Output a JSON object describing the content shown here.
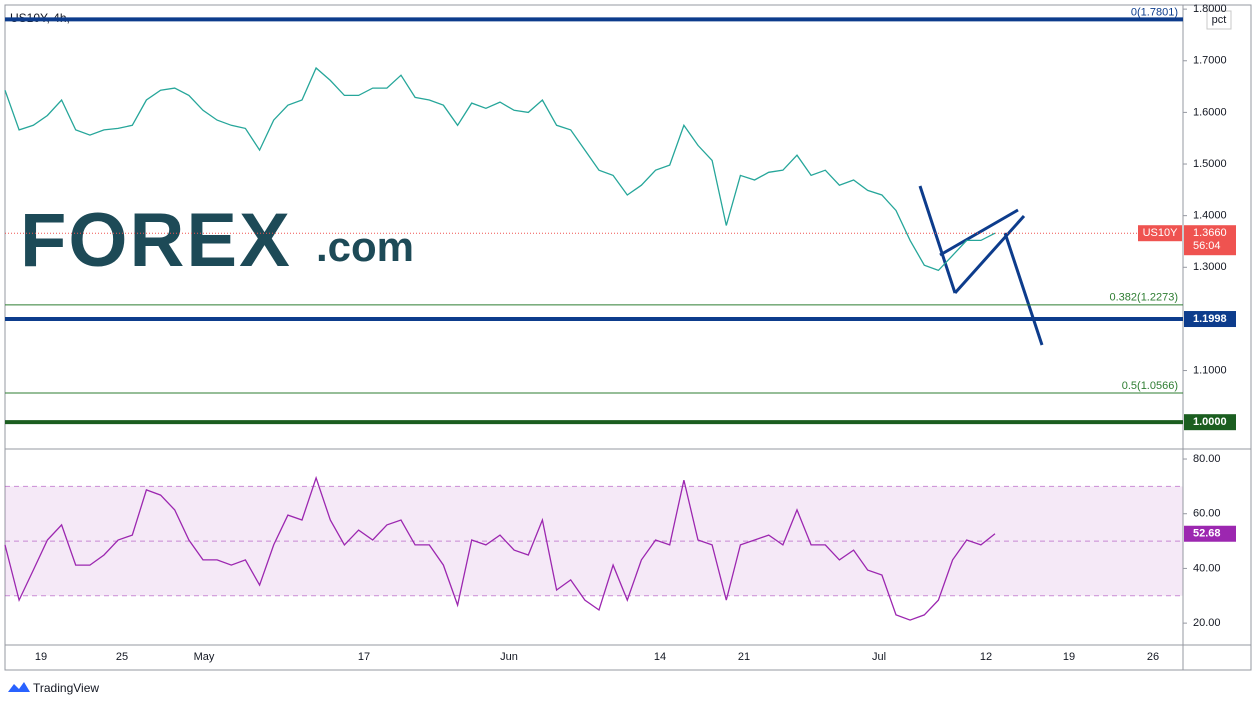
{
  "chart_data": [
    {
      "type": "line",
      "title": "US10Y, 4h,",
      "unit_button": "pct",
      "series": [
        {
          "name": "US10Y",
          "color": "#26a69a",
          "values": [
            1.643,
            1.566,
            1.575,
            1.594,
            1.624,
            1.566,
            1.556,
            1.566,
            1.569,
            1.575,
            1.624,
            1.643,
            1.647,
            1.633,
            1.604,
            1.585,
            1.575,
            1.569,
            1.527,
            1.585,
            1.614,
            1.624,
            1.686,
            1.662,
            1.633,
            1.633,
            1.647,
            1.647,
            1.672,
            1.629,
            1.624,
            1.614,
            1.575,
            1.618,
            1.608,
            1.62,
            1.604,
            1.6,
            1.624,
            1.575,
            1.566,
            1.527,
            1.488,
            1.478,
            1.44,
            1.459,
            1.488,
            1.498,
            1.575,
            1.536,
            1.507,
            1.381,
            1.478,
            1.469,
            1.484,
            1.488,
            1.517,
            1.478,
            1.488,
            1.459,
            1.469,
            1.449,
            1.44,
            1.41,
            1.352,
            1.304,
            1.294,
            1.323,
            1.352,
            1.352,
            1.366
          ]
        }
      ],
      "last_label": {
        "value": 1.366,
        "label": "1.3660"
      },
      "countdown": "56:04",
      "ylim": [
        0.95,
        1.808
      ],
      "yticks": [
        {
          "value": 1.8,
          "label": "1.8000"
        },
        {
          "value": 1.7,
          "label": "1.7000"
        },
        {
          "value": 1.6,
          "label": "1.6000"
        },
        {
          "value": 1.5,
          "label": "1.5000"
        },
        {
          "value": 1.4,
          "label": "1.4000"
        },
        {
          "value": 1.3,
          "label": "1.3000"
        },
        {
          "value": 1.1,
          "label": "1.1000"
        }
      ],
      "levels": [
        {
          "value": 1.7801,
          "label": "0(1.7801)",
          "color": "#0d3c8c",
          "kind": "fib"
        },
        {
          "value": 1.2273,
          "label": "0.382(1.2273)",
          "color": "#2e7d32",
          "kind": "fib"
        },
        {
          "value": 1.1998,
          "label": "1.1998",
          "color": "#0d3c8c",
          "kind": "axis"
        },
        {
          "value": 1.0566,
          "label": "0.5(1.0566)",
          "color": "#2e7d32",
          "kind": "fib"
        },
        {
          "value": 1.0,
          "label": "1.0000",
          "color": "#1b5e20",
          "kind": "axis"
        }
      ],
      "x_tick_labels": [
        "19",
        "25",
        "May",
        "17",
        "Jun",
        "14",
        "21",
        "Jul",
        "12",
        "19",
        "26"
      ],
      "logo": {
        "main": "FOREX",
        "suffix": ".com"
      },
      "footer": "TradingView"
    },
    {
      "type": "line",
      "color": "#9c27b0",
      "values": [
        48.6,
        28.4,
        39.4,
        50.4,
        55.9,
        41.2,
        41.2,
        44.9,
        50.4,
        52.2,
        68.7,
        66.8,
        61.4,
        50.4,
        43.1,
        43.1,
        41.2,
        43.1,
        33.9,
        48.6,
        59.5,
        57.7,
        73.1,
        57.7,
        48.6,
        54.0,
        50.4,
        55.9,
        57.7,
        48.6,
        48.6,
        41.2,
        26.6,
        50.4,
        48.6,
        52.2,
        46.7,
        44.9,
        57.7,
        32.1,
        35.8,
        28.4,
        24.8,
        41.2,
        28.4,
        43.1,
        50.4,
        48.6,
        72.3,
        50.4,
        48.6,
        28.4,
        48.6,
        50.4,
        52.2,
        48.6,
        61.4,
        48.6,
        48.6,
        43.1,
        46.7,
        39.4,
        37.6,
        23.0,
        21.1,
        23.0,
        28.4,
        43.1,
        50.4,
        48.6,
        52.68
      ],
      "ylim": [
        12,
        83.3
      ],
      "yticks": [
        {
          "value": 80,
          "label": "80.00"
        },
        {
          "value": 60,
          "label": "60.00"
        },
        {
          "value": 40,
          "label": "40.00"
        },
        {
          "value": 20,
          "label": "20.00"
        }
      ],
      "band": [
        30,
        70
      ],
      "midline": 50
    }
  ]
}
